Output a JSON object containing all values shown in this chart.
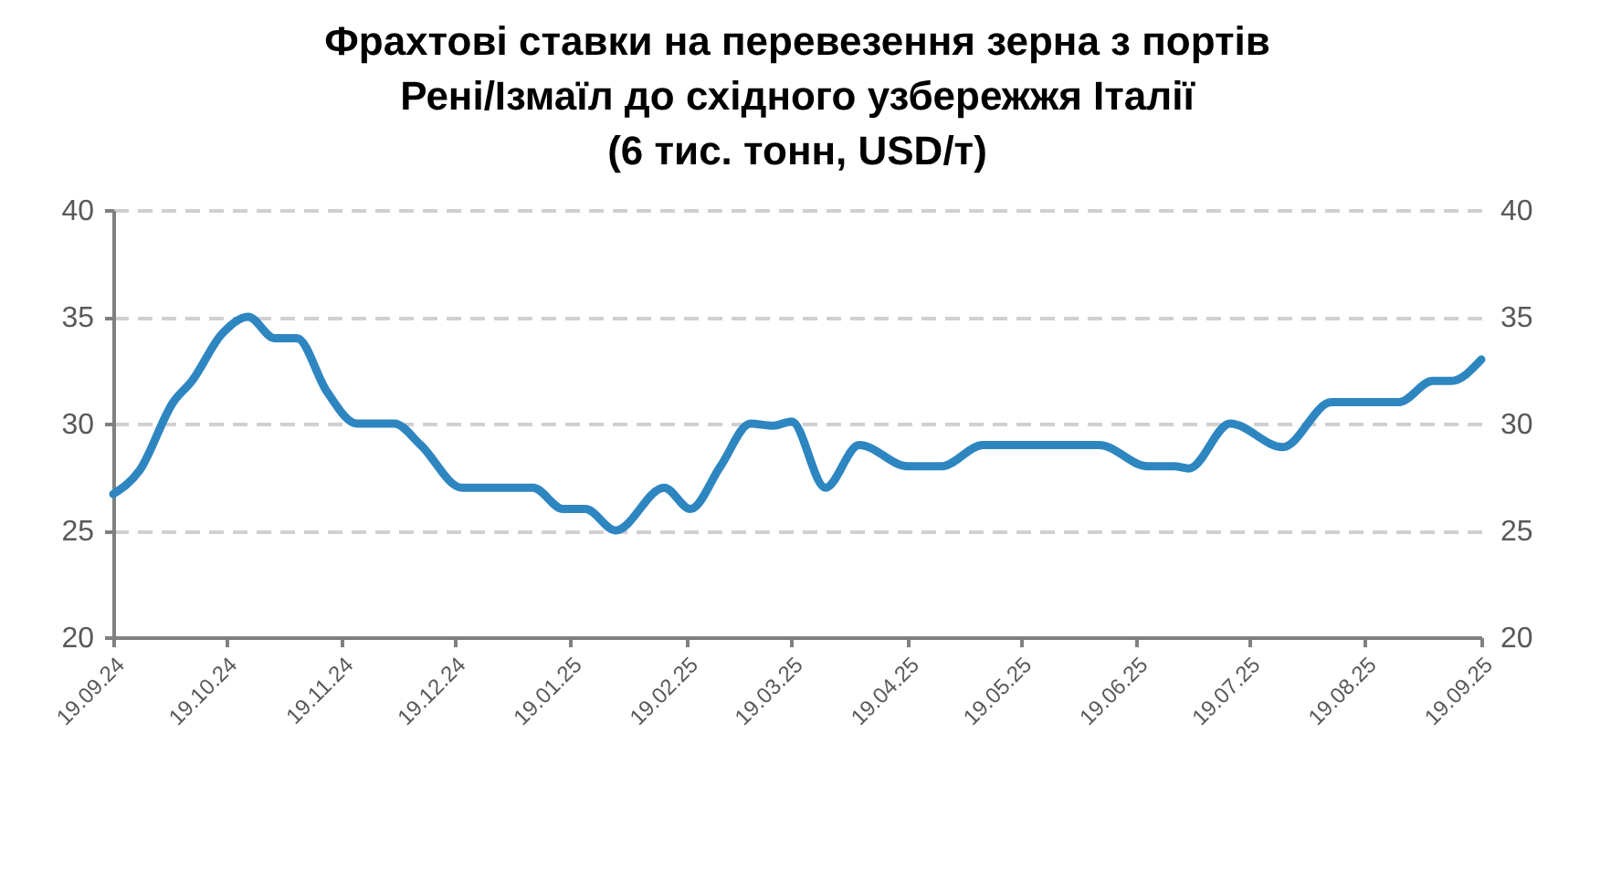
{
  "chart_data": {
    "type": "line",
    "title": [
      "Фрахтові ставки на перевезення зерна з портів",
      "Рені/Ізмаїл до східного узбережжя Італії",
      "(6 тис. тонн, USD/т)"
    ],
    "x": [
      "2024-09-19",
      "2024-09-26",
      "2024-10-05",
      "2024-10-10",
      "2024-10-18",
      "2024-10-25",
      "2024-11-01",
      "2024-11-07",
      "2024-11-15",
      "2024-11-23",
      "2024-12-03",
      "2024-12-10",
      "2024-12-21",
      "2024-12-30",
      "2025-01-09",
      "2025-01-17",
      "2025-01-23",
      "2025-01-31",
      "2025-02-13",
      "2025-02-20",
      "2025-02-28",
      "2025-03-08",
      "2025-03-14",
      "2025-03-19",
      "2025-03-28",
      "2025-04-06",
      "2025-04-19",
      "2025-04-28",
      "2025-05-09",
      "2025-06-09",
      "2025-06-22",
      "2025-06-29",
      "2025-07-03",
      "2025-07-14",
      "2025-07-28",
      "2025-08-10",
      "2025-08-19",
      "2025-08-28",
      "2025-09-06",
      "2025-09-11",
      "2025-09-19"
    ],
    "series": [
      {
        "color": "#2e86c1",
        "values": [
          26.7,
          27.8,
          31,
          32,
          34.2,
          35,
          34,
          34,
          31.5,
          30,
          30,
          29,
          27,
          27,
          27,
          26,
          26,
          25,
          27,
          26,
          28,
          30,
          29.9,
          30.1,
          27,
          29,
          28,
          28,
          29,
          29,
          28,
          28,
          27.9,
          30,
          28.9,
          31,
          31,
          31,
          32,
          32,
          33
        ]
      }
    ],
    "xlim": [
      "2024-09-19",
      "2025-09-19"
    ],
    "xticks": [
      {
        "value": "2024-09-19",
        "label": "19.09.24"
      },
      {
        "value": "2024-10-19",
        "label": "19.10.24"
      },
      {
        "value": "2024-11-19",
        "label": "19.11.24"
      },
      {
        "value": "2024-12-19",
        "label": "19.12.24"
      },
      {
        "value": "2025-01-19",
        "label": "19.01.25"
      },
      {
        "value": "2025-02-19",
        "label": "19.02.25"
      },
      {
        "value": "2025-03-19",
        "label": "19.03.25"
      },
      {
        "value": "2025-04-19",
        "label": "19.04.25"
      },
      {
        "value": "2025-05-19",
        "label": "19.05.25"
      },
      {
        "value": "2025-06-19",
        "label": "19.06.25"
      },
      {
        "value": "2025-07-19",
        "label": "19.07.25"
      },
      {
        "value": "2025-08-19",
        "label": "19.08.25"
      },
      {
        "value": "2025-09-19",
        "label": "19.09.25"
      }
    ],
    "ylim": [
      20,
      40
    ],
    "yticks": [
      20,
      25,
      30,
      35,
      40
    ],
    "y2lim": [
      20,
      40
    ],
    "y2ticks": [
      20,
      25,
      30,
      35,
      40
    ],
    "grid": "y",
    "marker": "none",
    "line_style": "solid"
  }
}
